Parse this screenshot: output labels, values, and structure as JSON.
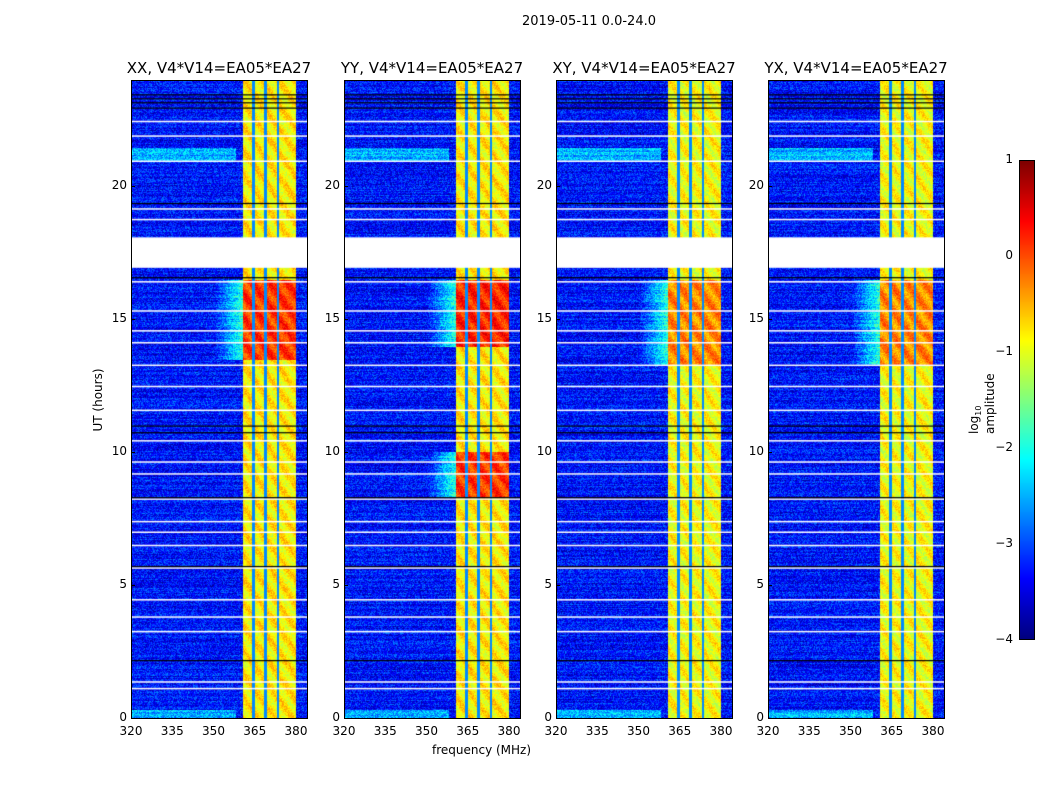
{
  "title": "2019-05-11 0.0-24.0",
  "chart_data": [
    {
      "type": "heatmap",
      "title": "XX, V4*V14=EA05*EA27",
      "xlabel": "",
      "ylabel": "UT (hours)",
      "xlim": [
        320,
        384
      ],
      "ylim": [
        0,
        24
      ],
      "xticks": [
        320,
        335,
        350,
        365,
        380
      ],
      "yticks": [
        0,
        5,
        10,
        15,
        20
      ],
      "rfi_band_mhz": [
        360.5,
        380
      ],
      "band_level": -0.8,
      "background_level": -3.3,
      "strong_periods": [
        {
          "hours": [
            13.5,
            16.5
          ],
          "level": 0.1
        }
      ]
    },
    {
      "type": "heatmap",
      "title": "YY, V4*V14=EA05*EA27",
      "xlabel": "frequency (MHz)",
      "ylabel": "",
      "xlim": [
        320,
        384
      ],
      "ylim": [
        0,
        24
      ],
      "xticks": [
        320,
        335,
        350,
        365,
        380
      ],
      "yticks": [
        0,
        5,
        10,
        15,
        20
      ],
      "rfi_band_mhz": [
        360.5,
        380
      ],
      "band_level": -0.8,
      "background_level": -3.3,
      "strong_periods": [
        {
          "hours": [
            14.0,
            16.5
          ],
          "level": 0.2
        },
        {
          "hours": [
            8.3,
            10.0
          ],
          "level": 0.1
        }
      ]
    },
    {
      "type": "heatmap",
      "title": "XY, V4*V14=EA05*EA27",
      "xlabel": "",
      "ylabel": "",
      "xlim": [
        320,
        384
      ],
      "ylim": [
        0,
        24
      ],
      "xticks": [
        320,
        335,
        350,
        365,
        380
      ],
      "yticks": [
        0,
        5,
        10,
        15,
        20
      ],
      "rfi_band_mhz": [
        360.5,
        380
      ],
      "band_level": -0.9,
      "background_level": -3.3,
      "strong_periods": [
        {
          "hours": [
            13.3,
            16.5
          ],
          "level": -0.3
        }
      ]
    },
    {
      "type": "heatmap",
      "title": "YX, V4*V14=EA05*EA27",
      "xlabel": "",
      "ylabel": "",
      "xlim": [
        320,
        384
      ],
      "ylim": [
        0,
        24
      ],
      "xticks": [
        320,
        335,
        350,
        365,
        380
      ],
      "yticks": [
        0,
        5,
        10,
        15,
        20
      ],
      "rfi_band_mhz": [
        360.5,
        380
      ],
      "band_level": -0.9,
      "background_level": -3.3,
      "strong_periods": [
        {
          "hours": [
            13.3,
            16.5
          ],
          "level": -0.3
        }
      ]
    }
  ],
  "flagged_gap_hours": [
    16.95,
    18.1
  ],
  "flagged_white_lines_hours": [
    1.1,
    1.35,
    3.25,
    3.8,
    4.45,
    5.65,
    6.5,
    7.0,
    7.4,
    8.25,
    9.2,
    9.65,
    10.45,
    11.6,
    12.5,
    13.3,
    14.15,
    14.6,
    15.35,
    16.45,
    18.8,
    19.2,
    21.0,
    21.95,
    22.5
  ],
  "black_lines_hours": [
    2.15,
    5.7,
    8.3,
    10.75,
    11.0,
    16.6,
    19.4,
    23.0,
    23.2,
    23.35,
    23.5
  ],
  "colorbar": {
    "label": "log10 amplitude",
    "label_main": "log",
    "label_sub": "10",
    "label_rest": " amplitude",
    "range": [
      -4,
      1
    ],
    "ticks": [
      "1",
      "0",
      "−1",
      "−2",
      "−3",
      "−4"
    ],
    "colormap": "jet"
  }
}
